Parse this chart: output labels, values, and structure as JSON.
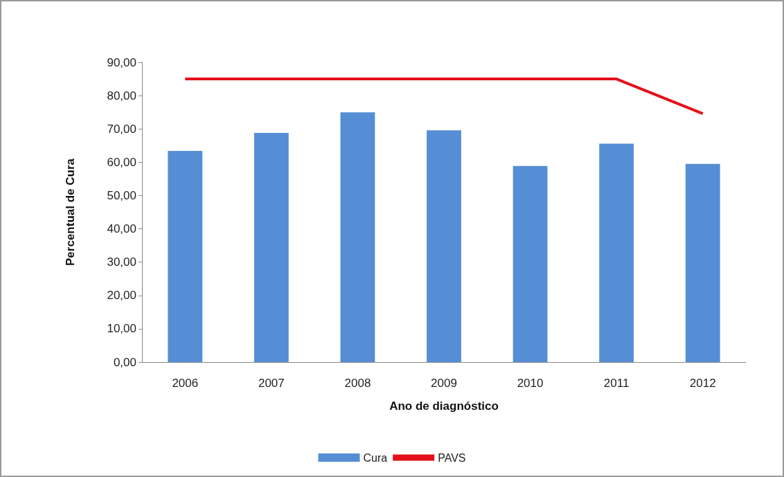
{
  "chart_data": {
    "type": "bar",
    "xlabel": "Ano de diagnóstico",
    "ylabel": "Percentual de Cura",
    "categories": [
      "2006",
      "2007",
      "2008",
      "2009",
      "2010",
      "2011",
      "2012"
    ],
    "series": [
      {
        "name": "Cura",
        "color": "#558ed5",
        "values": [
          63.4,
          68.8,
          75.0,
          69.6,
          58.9,
          65.6,
          59.5
        ]
      },
      {
        "name": "PAVS",
        "type": "line",
        "color": "#e3101b",
        "values": [
          85,
          85,
          85,
          85,
          85,
          85,
          74.6
        ]
      }
    ],
    "ylim": [
      0,
      90
    ],
    "yticks": [
      {
        "value": 0,
        "label": "0,00"
      },
      {
        "value": 10,
        "label": "10,00"
      },
      {
        "value": 20,
        "label": "20,00"
      },
      {
        "value": 30,
        "label": "30,00"
      },
      {
        "value": 40,
        "label": "40,00"
      },
      {
        "value": 50,
        "label": "50,00"
      },
      {
        "value": 60,
        "label": "60,00"
      },
      {
        "value": 70,
        "label": "70,00"
      },
      {
        "value": 80,
        "label": "80,00"
      },
      {
        "value": 90,
        "label": "90,00"
      }
    ],
    "grid": false,
    "legend": "bottom",
    "marker": "none"
  }
}
